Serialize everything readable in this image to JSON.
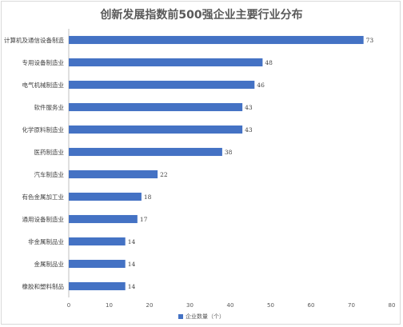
{
  "chart_data": {
    "type": "bar",
    "orientation": "horizontal",
    "title": "创新发展指数前500强企业主要行业分布",
    "categories": [
      "计算机及通信设备制造",
      "专用设备制造业",
      "电气机械制造业",
      "软件服务业",
      "化学原料制造业",
      "医药制造业",
      "汽车制造业",
      "有色金属加工业",
      "通用设备制造业",
      "非金属制品业",
      "金属制品业",
      "橡胶和塑料制品"
    ],
    "series": [
      {
        "name": "企业数量（个）",
        "values": [
          73,
          48,
          46,
          43,
          43,
          38,
          22,
          18,
          17,
          14,
          14,
          14
        ],
        "color": "#4472c4"
      }
    ],
    "xlim": [
      0,
      80
    ],
    "xticks": [
      0,
      10,
      20,
      30,
      40,
      50,
      60,
      70,
      80
    ],
    "grid": false,
    "legend": "bottom"
  }
}
